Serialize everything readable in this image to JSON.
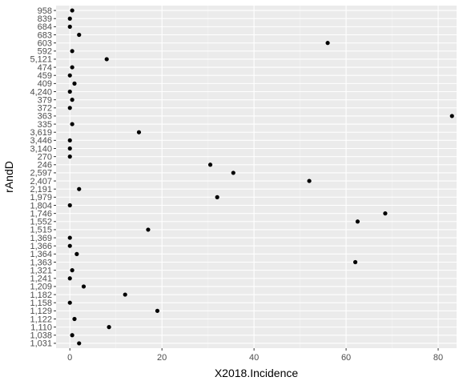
{
  "chart_data": {
    "type": "scatter",
    "title": "",
    "xlabel": "X2018.Incidence",
    "ylabel": "rAndD",
    "xlim": [
      -3,
      84
    ],
    "x_ticks": [
      0,
      20,
      40,
      60,
      80
    ],
    "grid": true,
    "legend": "none",
    "colors": {
      "panel": "#ebebeb",
      "grid_major": "#ffffff",
      "grid_minor": "#f5f5f5",
      "point": "#000000",
      "tick_text": "#4d4d4d"
    },
    "categories": [
      "1,031",
      "1,038",
      "1,110",
      "1,122",
      "1,129",
      "1,158",
      "1,182",
      "1,209",
      "1,241",
      "1,321",
      "1,363",
      "1,364",
      "1,366",
      "1,369",
      "1,515",
      "1,552",
      "1,746",
      "1,804",
      "1,979",
      "2,191",
      "2,407",
      "2,597",
      "246",
      "270",
      "3,140",
      "3,446",
      "3,619",
      "335",
      "363",
      "372",
      "379",
      "4,240",
      "409",
      "459",
      "474",
      "5,121",
      "592",
      "603",
      "683",
      "684",
      "839",
      "958"
    ],
    "points": [
      {
        "y": "1,031",
        "x": 2.0
      },
      {
        "y": "1,038",
        "x": 0.5
      },
      {
        "y": "1,110",
        "x": 8.5
      },
      {
        "y": "1,122",
        "x": 1.0
      },
      {
        "y": "1,129",
        "x": 19.0
      },
      {
        "y": "1,158",
        "x": 0.0
      },
      {
        "y": "1,182",
        "x": 12.0
      },
      {
        "y": "1,209",
        "x": 3.0
      },
      {
        "y": "1,241",
        "x": 0.0
      },
      {
        "y": "1,321",
        "x": 0.5
      },
      {
        "y": "1,363",
        "x": 62.0
      },
      {
        "y": "1,364",
        "x": 1.5
      },
      {
        "y": "1,366",
        "x": 0.0
      },
      {
        "y": "1,369",
        "x": 0.0
      },
      {
        "y": "1,515",
        "x": 17.0
      },
      {
        "y": "1,552",
        "x": 62.5
      },
      {
        "y": "1,746",
        "x": 68.5
      },
      {
        "y": "1,804",
        "x": 0.0
      },
      {
        "y": "1,979",
        "x": 32.0
      },
      {
        "y": "2,191",
        "x": 2.0
      },
      {
        "y": "2,407",
        "x": 52.0
      },
      {
        "y": "2,597",
        "x": 35.5
      },
      {
        "y": "246",
        "x": 30.5
      },
      {
        "y": "270",
        "x": 0.0
      },
      {
        "y": "3,140",
        "x": 0.0
      },
      {
        "y": "3,446",
        "x": 0.0
      },
      {
        "y": "3,619",
        "x": 15.0
      },
      {
        "y": "335",
        "x": 0.5
      },
      {
        "y": "363",
        "x": 83.0
      },
      {
        "y": "372",
        "x": 0.0
      },
      {
        "y": "379",
        "x": 0.5
      },
      {
        "y": "4,240",
        "x": 0.0
      },
      {
        "y": "409",
        "x": 1.0
      },
      {
        "y": "459",
        "x": 0.0
      },
      {
        "y": "474",
        "x": 0.5
      },
      {
        "y": "5,121",
        "x": 8.0
      },
      {
        "y": "592",
        "x": 0.5
      },
      {
        "y": "603",
        "x": 56.0
      },
      {
        "y": "683",
        "x": 2.0
      },
      {
        "y": "684",
        "x": 0.0
      },
      {
        "y": "839",
        "x": 0.0
      },
      {
        "y": "958",
        "x": 0.5
      }
    ]
  }
}
